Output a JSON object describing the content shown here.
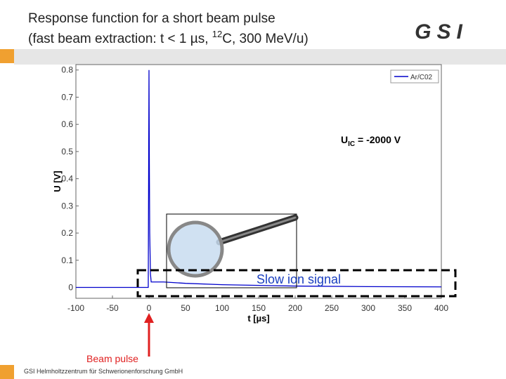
{
  "header": {
    "title_line1": "Response function for a short beam pulse",
    "title_line2_a": "(fast beam extraction: t < 1 µs, ",
    "title_line2_sup": "12",
    "title_line2_b": "C, 300 MeV/u)",
    "logo": "GSI"
  },
  "chart_data": {
    "type": "line",
    "x": [
      -100,
      -1,
      0,
      0.5,
      1,
      2,
      3,
      5,
      10,
      20,
      50,
      100,
      200,
      300,
      400
    ],
    "series": [
      {
        "name": "Ar/C02",
        "color": "#0000cc",
        "values": [
          0,
          0,
          0.8,
          0.45,
          0.2,
          0.05,
          0.02,
          0.02,
          0.02,
          0.02,
          0.015,
          0.01,
          0.005,
          0.003,
          0.002
        ]
      }
    ],
    "xlim": [
      -100,
      400
    ],
    "ylim": [
      -0.04,
      0.82
    ],
    "xticks": [
      -100,
      -50,
      0,
      50,
      100,
      150,
      200,
      250,
      300,
      350,
      400
    ],
    "yticks": [
      0,
      0.1,
      0.2,
      0.3,
      0.4,
      0.5,
      0.6,
      0.7,
      0.8
    ],
    "xlabel": "t [µs]",
    "ylabel": "U [V]",
    "annotation": {
      "main": "U",
      "sub": "IC",
      "rest": " = -2000 V"
    }
  },
  "annotations": {
    "beam_pulse": "Beam pulse",
    "slow_ion_signal": "Slow ion signal"
  },
  "footer": "GSI Helmholtzzentrum für Schwerionenforschung GmbH"
}
